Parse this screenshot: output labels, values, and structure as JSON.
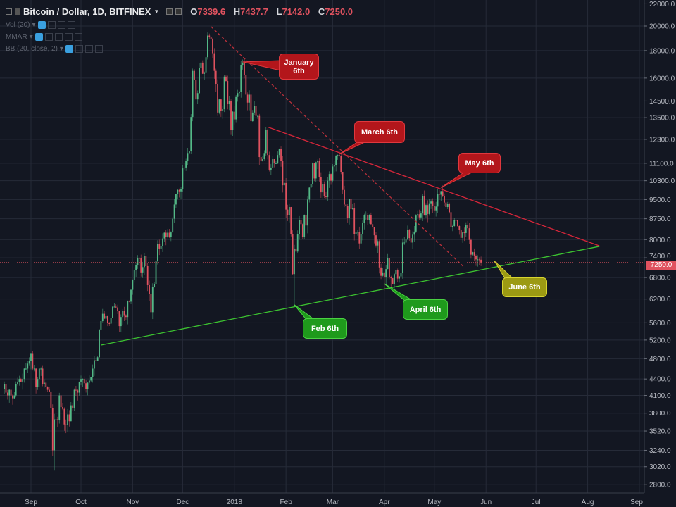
{
  "header": {
    "symbol": "Bitcoin / Dollar, 1D, BITFINEX",
    "ohlc": [
      {
        "key": "O",
        "value": "7339.6"
      },
      {
        "key": "H",
        "value": "7437.7"
      },
      {
        "key": "L",
        "value": "7142.0"
      },
      {
        "key": "C",
        "value": "7250.0"
      }
    ],
    "indicators": [
      "Vol (20)",
      "MMAR",
      "BB (20, close, 2)"
    ]
  },
  "colors": {
    "background": "#131722",
    "up": "#53b987",
    "down": "#e0525f",
    "grid": "#262b38",
    "resistance": "#d8263a",
    "support": "#3cc330"
  },
  "chart_data": {
    "type": "candlestick",
    "title": "Bitcoin / Dollar, 1D, BITFINEX",
    "yscale": "log",
    "ylim": [
      2650,
      22500
    ],
    "start_date": "2017-08-16",
    "closes": [
      4300,
      4150,
      4100,
      4200,
      4100,
      4050,
      4100,
      4300,
      4350,
      4400,
      4350,
      4400,
      4600,
      4600,
      4700,
      4750,
      4900,
      4600,
      4600,
      4250,
      4400,
      4600,
      4600,
      4300,
      4330,
      4250,
      4200,
      4170,
      3880,
      3240,
      3700,
      3700,
      3690,
      4100,
      3900,
      3870,
      3620,
      3610,
      3780,
      3670,
      3930,
      3890,
      4200,
      4190,
      4150,
      4350,
      4400,
      4400,
      4320,
      4220,
      4330,
      4370,
      4440,
      4600,
      4770,
      4760,
      4830,
      5440,
      5640,
      5820,
      5700,
      5760,
      5590,
      5580,
      5710,
      6000,
      6000,
      5980,
      5900,
      5520,
      5740,
      5890,
      5770,
      5740,
      6150,
      6130,
      6450,
      6740,
      7030,
      7160,
      7390,
      7380,
      6950,
      7110,
      7460,
      7140,
      6580,
      6340,
      5860,
      6530,
      6600,
      7290,
      7850,
      7700,
      7780,
      8040,
      8240,
      8090,
      8240,
      8100,
      8250,
      8750,
      9300,
      9730,
      9900,
      9840,
      9950,
      10860,
      10900,
      11220,
      11600,
      11680,
      13540,
      16500,
      15900,
      14600,
      15000,
      16700,
      17100,
      16300,
      16400,
      17500,
      19200,
      19100,
      18900,
      17800,
      16500,
      15600,
      13800,
      14600,
      13900,
      14000,
      16100,
      15800,
      14300,
      14500,
      12800,
      13850,
      13400,
      14750,
      15000,
      15100,
      16900,
      17100,
      16200,
      14900,
      14400,
      14900,
      13300,
      13800,
      14200,
      13600,
      13600,
      11400,
      11200,
      11300,
      11600,
      12800,
      11500,
      10800,
      10900,
      11300,
      11100,
      11100,
      11500,
      11800,
      11200,
      10100,
      10200,
      9100,
      8900,
      9200,
      8200,
      6900,
      7700,
      7600,
      8200,
      8700,
      8550,
      8100,
      8900,
      8500,
      9500,
      10000,
      10150,
      11100,
      10400,
      11150,
      11200,
      10450,
      9800,
      10150,
      9650,
      9600,
      10300,
      10600,
      10300,
      10950,
      11000,
      11450,
      11500,
      11450,
      10700,
      9900,
      9300,
      9230,
      8780,
      9530,
      9120,
      9150,
      8200,
      8250,
      8270,
      7870,
      8200,
      8600,
      8900,
      8900,
      8700,
      8900,
      8550,
      8450,
      8150,
      7800,
      7950,
      7100,
      6850,
      6950,
      6800,
      7050,
      7400,
      6800,
      6780,
      6620,
      6900,
      7020,
      6770,
      6830,
      6930,
      7900,
      7900,
      8000,
      8350,
      8050,
      7900,
      8170,
      8280,
      8870,
      8920,
      8800,
      8950,
      9650,
      8870,
      9280,
      8930,
      9350,
      9420,
      9240,
      9070,
      9220,
      9740,
      9700,
      9850,
      9640,
      9380,
      9200,
      9320,
      9000,
      8440,
      8480,
      8700,
      8690,
      8480,
      8340,
      8060,
      8250,
      8230,
      8530,
      8400,
      7990,
      7500,
      7580,
      7470,
      7350,
      7350,
      7339.6,
      7250
    ],
    "last": {
      "open": 7339.6,
      "high": 7437.7,
      "low": 7142.0,
      "close": 7250.0
    },
    "notable_lows": {
      "2017-09-15": 2970,
      "2018-02-06": 6000,
      "2018-04-01": 6430,
      "2017-11-12": 5500
    },
    "y_ticks": [
      "22000.0",
      "20000.0",
      "18000.0",
      "16000.0",
      "14500.0",
      "13500.0",
      "12300.0",
      "11100.0",
      "10300.0",
      "9500.0",
      "8750.0",
      "8000.0",
      "7400.0",
      "6800.0",
      "6200.0",
      "5600.0",
      "5200.0",
      "4800.0",
      "4400.0",
      "4100.0",
      "3800.0",
      "3520.0",
      "3240.0",
      "3020.0",
      "2800.0"
    ],
    "x_ticks": [
      {
        "label": "Sep",
        "date": "2017-09-01"
      },
      {
        "label": "Oct",
        "date": "2017-10-01"
      },
      {
        "label": "Nov",
        "date": "2017-11-01"
      },
      {
        "label": "Dec",
        "date": "2017-12-01"
      },
      {
        "label": "2018",
        "date": "2018-01-01"
      },
      {
        "label": "Feb",
        "date": "2018-02-01"
      },
      {
        "label": "Mar",
        "date": "2018-03-01"
      },
      {
        "label": "Apr",
        "date": "2018-04-01"
      },
      {
        "label": "May",
        "date": "2018-05-01"
      },
      {
        "label": "Jun",
        "date": "2018-06-01"
      },
      {
        "label": "Jul",
        "date": "2018-07-01"
      },
      {
        "label": "Aug",
        "date": "2018-08-01"
      },
      {
        "label": "Sep",
        "date": "2018-09-01"
      }
    ],
    "current_price": "7250.0",
    "trendlines": [
      {
        "name": "resistance-line",
        "style": "solid",
        "color": "#d8263a",
        "from": {
          "date": "2018-01-21",
          "price": 12970
        },
        "to": {
          "date": "2018-08-08",
          "price": 7790
        }
      },
      {
        "name": "resistance-dashed-line",
        "style": "dashed",
        "color": "#b8303a",
        "from": {
          "date": "2017-12-18",
          "price": 19950
        },
        "to": {
          "date": "2018-05-19",
          "price": 7100
        }
      },
      {
        "name": "support-line",
        "style": "solid",
        "color": "#3cc330",
        "from": {
          "date": "2017-10-13",
          "price": 5090
        },
        "to": {
          "date": "2018-08-08",
          "price": 7770
        }
      }
    ],
    "annotations": [
      {
        "text": "January\n6th",
        "color": "red",
        "point": {
          "date": "2018-01-06",
          "price": 17150
        }
      },
      {
        "text": "March 6th",
        "color": "red",
        "point": {
          "date": "2018-03-05",
          "price": 11550
        }
      },
      {
        "text": "May 6th",
        "color": "red",
        "point": {
          "date": "2018-05-05",
          "price": 10000
        }
      },
      {
        "text": "Feb 6th",
        "color": "green",
        "point": {
          "date": "2018-02-06",
          "price": 6050
        }
      },
      {
        "text": "April 6th",
        "color": "green",
        "point": {
          "date": "2018-04-01",
          "price": 6620
        }
      },
      {
        "text": "June 6th",
        "color": "yellow",
        "point": {
          "date": "2018-06-06",
          "price": 7300
        }
      }
    ]
  }
}
